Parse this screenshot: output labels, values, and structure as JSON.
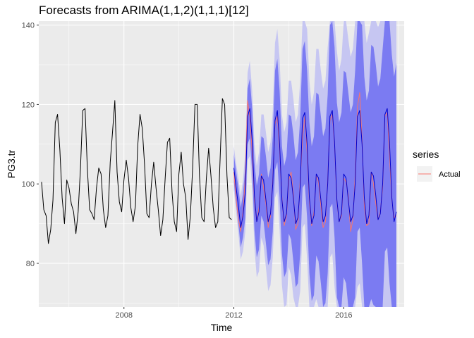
{
  "chart_data": {
    "type": "line",
    "title": "Forecasts from ARIMA(1,1,2)(1,1,1)[12]",
    "xlabel": "Time",
    "ylabel": "PG3.tr",
    "xlim": [
      2004.9,
      2018.2
    ],
    "ylim": [
      69,
      141
    ],
    "x_ticks": [
      2008,
      2012,
      2016
    ],
    "y_ticks": [
      80,
      100,
      120,
      140
    ],
    "grid": true,
    "legend": {
      "title": "series",
      "placement": "right",
      "entries": [
        {
          "label": "Actual",
          "color": "#f8766d"
        }
      ]
    },
    "colors": {
      "history": "#000000",
      "forecast": "#0000cc",
      "actual": "#f8766d",
      "band80": "#7b7bf2",
      "band95": "#c6c6f2",
      "panel_background": "#ebebeb",
      "gridline": "#ffffff"
    },
    "history": {
      "start": 2005.0,
      "frequency": 12,
      "values": [
        100.5,
        93.5,
        92,
        85,
        88.5,
        96,
        115.5,
        117.5,
        108.5,
        96.5,
        90,
        101,
        99,
        95,
        93,
        87.5,
        93,
        104,
        118.5,
        119,
        104,
        93.5,
        92.5,
        91,
        99,
        104,
        102.5,
        93.5,
        89,
        92,
        105.5,
        113,
        121,
        103,
        95.5,
        93,
        101,
        106,
        101.5,
        94,
        90.5,
        94.5,
        109.5,
        117.5,
        114,
        105,
        92.5,
        91.5,
        100,
        105.5,
        99,
        93.5,
        87,
        91,
        101.5,
        110.5,
        111.5,
        98,
        90.5,
        88,
        102.5,
        108,
        100,
        96.5,
        86,
        92,
        104,
        120,
        120,
        102,
        91.5,
        90.5,
        101.5,
        109,
        102,
        94,
        89,
        90.5,
        106.5,
        121.5,
        120,
        102,
        91.5,
        91
      ]
    },
    "forecast": {
      "start": 2012.0,
      "frequency": 12,
      "mean": [
        104,
        99,
        94.5,
        89,
        92,
        98,
        117,
        119,
        111,
        97,
        90.5,
        93,
        102,
        101,
        96,
        90.5,
        92.5,
        100,
        116,
        118.5,
        110,
        96,
        90.5,
        92.5,
        102.5,
        101.5,
        96.5,
        90,
        91.5,
        99.5,
        116.5,
        118,
        110,
        96.5,
        90,
        92,
        102.5,
        101.5,
        96,
        90.5,
        92,
        100,
        117,
        118.5,
        110.5,
        96,
        90.5,
        92.5,
        102.5,
        101.5,
        96,
        90.5,
        92,
        100,
        117,
        118.5,
        110,
        96.5,
        90,
        92,
        103,
        102,
        97,
        91,
        92.5,
        100,
        117.5,
        119,
        110.5,
        96.5,
        90.5,
        93
      ],
      "lo80": [
        100.5,
        95,
        90,
        84,
        86.5,
        91.5,
        110,
        111.5,
        103,
        88.5,
        81.5,
        83.5,
        92,
        90.5,
        85,
        79.5,
        81,
        88,
        103.5,
        105.5,
        96.5,
        82.5,
        76.5,
        78,
        87.5,
        86,
        80.5,
        74,
        75,
        82.5,
        99,
        100,
        91.5,
        77.5,
        70.5,
        72,
        82,
        80.5,
        75,
        69,
        70,
        77.5,
        94,
        95,
        86.5,
        71.5,
        65.5,
        67,
        76.5,
        75,
        69,
        63,
        64,
        71.5,
        88,
        89,
        80,
        66,
        59,
        60.5,
        71,
        69.5,
        64,
        57.5,
        58.5,
        66,
        83,
        84,
        75,
        60.5,
        54,
        55.5
      ],
      "hi80": [
        107.5,
        103,
        99,
        94,
        97.5,
        104.5,
        124,
        126.5,
        119,
        105.5,
        99.5,
        102.5,
        112,
        111.5,
        107,
        101.5,
        104,
        112,
        128.5,
        131.5,
        123.5,
        109.5,
        104.5,
        107,
        117.5,
        117,
        112.5,
        106,
        108,
        116.5,
        134,
        136,
        128.5,
        115.5,
        109.5,
        112,
        123,
        122.5,
        117,
        112,
        114,
        122.5,
        140,
        142,
        134.5,
        120.5,
        115.5,
        118,
        128.5,
        128,
        123,
        118,
        120,
        128.5,
        146,
        148,
        140,
        127,
        121,
        123.5,
        135,
        134.5,
        130,
        124.5,
        126.5,
        134,
        152,
        154,
        146,
        132.5,
        127,
        130.5
      ],
      "lo95": [
        98.5,
        93,
        87.5,
        81,
        83,
        88,
        106,
        107,
        98.5,
        84,
        76.5,
        78,
        86.5,
        84.5,
        79,
        73,
        74.5,
        81.5,
        96.5,
        98,
        88.5,
        74.5,
        68,
        69.5,
        79,
        77,
        71.5,
        64.5,
        65.5,
        73,
        89,
        90,
        81,
        67,
        60,
        61,
        71,
        69,
        63.5,
        57,
        58,
        65.5,
        81.5,
        82.5,
        74,
        58.5,
        52.5,
        53.5,
        63,
        61.5,
        55.5,
        49,
        50,
        57.5,
        74,
        75,
        66,
        51.5,
        44.5,
        46,
        56.5,
        54.5,
        49,
        42.5,
        43.5,
        51,
        68,
        69,
        59.5,
        45,
        38.5,
        40
      ],
      "hi95": [
        109.5,
        105,
        101.5,
        97,
        101,
        108,
        128,
        131,
        123.5,
        110,
        104.5,
        108,
        117.5,
        117.5,
        113,
        108,
        110.5,
        118.5,
        135.5,
        139,
        131.5,
        117.5,
        113,
        115.5,
        126,
        126,
        121.5,
        115.5,
        117.5,
        126,
        144,
        146,
        139,
        126,
        120,
        123,
        134,
        134,
        128.5,
        124,
        126,
        134.5,
        152.5,
        154.5,
        147,
        133.5,
        128.5,
        131.5,
        142,
        141.5,
        136.5,
        132,
        134,
        142.5,
        160,
        162,
        154,
        141.5,
        135.5,
        138,
        149.5,
        149.5,
        145,
        139.5,
        141.5,
        149,
        167,
        169,
        161.5,
        148,
        142.5,
        146
      ]
    },
    "actual": {
      "start": 2012.0,
      "frequency": 12,
      "values": [
        103,
        96,
        91,
        88,
        93,
        101.5,
        121,
        117,
        108,
        96,
        90.5,
        94,
        102.5,
        99,
        95,
        89,
        92,
        101,
        115,
        117,
        108.5,
        96.5,
        89.5,
        92,
        101,
        103,
        97.5,
        88.5,
        90,
        101,
        111.5,
        117,
        108,
        95.5,
        89.5,
        93,
        102,
        100.5,
        94.5,
        89,
        90.5,
        101,
        116,
        117.5,
        110,
        95.5,
        90.5,
        92,
        101.5,
        100.5,
        97,
        88,
        91,
        102,
        119.5,
        123,
        111,
        94.5,
        89.5,
        90,
        103,
        100,
        95,
        91,
        93,
        99,
        117,
        118,
        107,
        96,
        91.5,
        92
      ]
    }
  }
}
